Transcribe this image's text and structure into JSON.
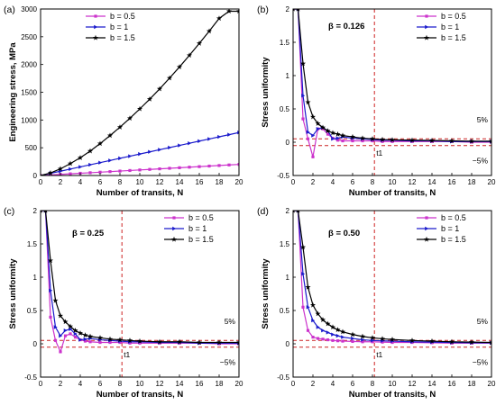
{
  "figure": {
    "legend": [
      "b = 0.5",
      "b = 1",
      "b = 1.5"
    ],
    "series_colors": [
      "#cc33cc",
      "#1a1acc",
      "#000000"
    ],
    "ref_line_color": "#cc2222",
    "percent_pos": "5%",
    "percent_neg": "−5%",
    "t1_label": "t1"
  },
  "chart_data": [
    {
      "panel": "(a)",
      "type": "line",
      "xlabel": "Number of transits, N",
      "ylabel": "Engineering stress, MPa",
      "xlim": [
        0,
        20
      ],
      "ylim": [
        0,
        3000
      ],
      "xticks": [
        0,
        2,
        4,
        6,
        8,
        10,
        12,
        14,
        16,
        18,
        20
      ],
      "yticks": [
        0,
        500,
        1000,
        1500,
        2000,
        2500,
        3000
      ],
      "legend_position": "top-left",
      "x": [
        0,
        1,
        2,
        3,
        4,
        5,
        6,
        7,
        8,
        9,
        10,
        11,
        12,
        13,
        14,
        15,
        16,
        17,
        18,
        19,
        20
      ],
      "series": [
        {
          "name": "b = 0.5",
          "color": "#cc33cc",
          "marker": "square",
          "values": [
            0,
            11,
            20,
            30,
            40,
            50,
            60,
            70,
            80,
            90,
            100,
            110,
            120,
            130,
            140,
            150,
            160,
            170,
            180,
            190,
            200
          ]
        },
        {
          "name": "b = 1",
          "color": "#1a1acc",
          "marker": "triangle",
          "values": [
            0,
            39,
            77,
            116,
            155,
            194,
            232,
            271,
            310,
            348,
            387,
            426,
            465,
            503,
            542,
            581,
            620,
            658,
            697,
            736,
            775
          ]
        },
        {
          "name": "b = 1.5",
          "color": "#000000",
          "marker": "star",
          "values": [
            0,
            45,
            120,
            215,
            320,
            440,
            575,
            720,
            870,
            1030,
            1200,
            1375,
            1560,
            1755,
            1955,
            2165,
            2380,
            2600,
            2830,
            2960,
            2960
          ]
        }
      ]
    },
    {
      "panel": "(b)",
      "type": "line",
      "beta": "β = 0.126",
      "xlabel": "Number of transits, N",
      "ylabel": "Stress uniformity",
      "xlim": [
        0,
        20
      ],
      "ylim": [
        -0.5,
        2.0
      ],
      "xticks": [
        0,
        2,
        4,
        6,
        8,
        10,
        12,
        14,
        16,
        18,
        20
      ],
      "yticks": [
        -0.5,
        0.0,
        0.5,
        1.0,
        1.5,
        2.0
      ],
      "legend_position": "top-right",
      "t1": 8.2,
      "ref_band": [
        0.05,
        -0.05
      ],
      "x": [
        0,
        0.5,
        1.0,
        1.5,
        2.0,
        2.5,
        3.0,
        3.5,
        4.0,
        4.5,
        5.0,
        6.0,
        7.0,
        8.0,
        9.0,
        10.0,
        12.0,
        14.0,
        16.0,
        18.0,
        20.0
      ],
      "series": [
        {
          "name": "b = 0.5",
          "color": "#cc33cc",
          "marker": "square",
          "values": [
            2.0,
            2.0,
            0.35,
            0.05,
            -0.22,
            0.2,
            0.2,
            0.12,
            0.06,
            0.03,
            0.02,
            0.02,
            0.02,
            0.02,
            0.01,
            0.01,
            0.01,
            0.01,
            0.01,
            0.0,
            0.0
          ]
        },
        {
          "name": "b = 1",
          "color": "#1a1acc",
          "marker": "triangle",
          "values": [
            2.0,
            2.0,
            0.7,
            0.15,
            0.1,
            0.2,
            0.22,
            0.17,
            0.05,
            0.06,
            0.08,
            0.06,
            0.05,
            0.04,
            0.03,
            0.03,
            0.02,
            0.02,
            0.01,
            0.01,
            0.01
          ]
        },
        {
          "name": "b = 1.5",
          "color": "#000000",
          "marker": "star",
          "values": [
            2.0,
            2.0,
            1.18,
            0.6,
            0.38,
            0.28,
            0.22,
            0.17,
            0.14,
            0.12,
            0.1,
            0.08,
            0.06,
            0.05,
            0.04,
            0.035,
            0.03,
            0.025,
            0.02,
            0.015,
            0.015
          ]
        }
      ]
    },
    {
      "panel": "(c)",
      "type": "line",
      "beta": "β = 0.25",
      "xlabel": "Number of transits, N",
      "ylabel": "Stress uniformity",
      "xlim": [
        0,
        20
      ],
      "ylim": [
        -0.5,
        2.0
      ],
      "xticks": [
        0,
        2,
        4,
        6,
        8,
        10,
        12,
        14,
        16,
        18,
        20
      ],
      "yticks": [
        -0.5,
        0.0,
        0.5,
        1.0,
        1.5,
        2.0
      ],
      "legend_position": "top-right",
      "t1": 8.2,
      "ref_band": [
        0.05,
        -0.05
      ],
      "x": [
        0,
        0.5,
        1.0,
        1.5,
        2.0,
        2.5,
        3.0,
        3.5,
        4.0,
        4.5,
        5.0,
        6.0,
        7.0,
        8.0,
        9.0,
        10.0,
        12.0,
        14.0,
        16.0,
        18.0,
        20.0
      ],
      "series": [
        {
          "name": "b = 0.5",
          "color": "#cc33cc",
          "marker": "square",
          "values": [
            2.0,
            2.0,
            0.4,
            0.05,
            -0.12,
            0.12,
            0.15,
            0.1,
            0.06,
            0.04,
            0.03,
            0.02,
            0.02,
            0.02,
            0.01,
            0.01,
            0.01,
            0.01,
            0.01,
            0.0,
            0.0
          ]
        },
        {
          "name": "b = 1",
          "color": "#1a1acc",
          "marker": "triangle",
          "values": [
            2.0,
            2.0,
            0.8,
            0.25,
            0.12,
            0.2,
            0.22,
            0.15,
            0.06,
            0.07,
            0.08,
            0.06,
            0.05,
            0.04,
            0.03,
            0.03,
            0.02,
            0.02,
            0.01,
            0.01,
            0.01
          ]
        },
        {
          "name": "b = 1.5",
          "color": "#000000",
          "marker": "star",
          "values": [
            2.0,
            2.0,
            1.25,
            0.65,
            0.42,
            0.33,
            0.26,
            0.2,
            0.16,
            0.13,
            0.11,
            0.09,
            0.07,
            0.06,
            0.05,
            0.04,
            0.03,
            0.03,
            0.02,
            0.02,
            0.02
          ]
        }
      ]
    },
    {
      "panel": "(d)",
      "type": "line",
      "beta": "β = 0.50",
      "xlabel": "Number of transits, N",
      "ylabel": "Stress uniformity",
      "xlim": [
        0,
        20
      ],
      "ylim": [
        -0.5,
        2.0
      ],
      "xticks": [
        0,
        2,
        4,
        6,
        8,
        10,
        12,
        14,
        16,
        18,
        20
      ],
      "yticks": [
        -0.5,
        0.0,
        0.5,
        1.0,
        1.5,
        2.0
      ],
      "legend_position": "top-right",
      "t1": 8.2,
      "ref_band": [
        0.05,
        -0.05
      ],
      "x": [
        0,
        0.5,
        1.0,
        1.5,
        2.0,
        2.5,
        3.0,
        3.5,
        4.0,
        4.5,
        5.0,
        6.0,
        7.0,
        8.0,
        9.0,
        10.0,
        12.0,
        14.0,
        16.0,
        18.0,
        20.0
      ],
      "series": [
        {
          "name": "b = 0.5",
          "color": "#cc33cc",
          "marker": "square",
          "values": [
            2.0,
            2.0,
            0.55,
            0.2,
            0.1,
            0.08,
            0.07,
            0.06,
            0.05,
            0.045,
            0.04,
            0.035,
            0.03,
            0.03,
            0.025,
            0.02,
            0.02,
            0.015,
            0.01,
            0.01,
            0.01
          ]
        },
        {
          "name": "b = 1",
          "color": "#1a1acc",
          "marker": "triangle",
          "values": [
            2.0,
            2.0,
            1.05,
            0.55,
            0.35,
            0.25,
            0.2,
            0.17,
            0.14,
            0.12,
            0.1,
            0.08,
            0.06,
            0.05,
            0.045,
            0.04,
            0.03,
            0.025,
            0.02,
            0.015,
            0.015
          ]
        },
        {
          "name": "b = 1.5",
          "color": "#000000",
          "marker": "star",
          "values": [
            2.0,
            2.0,
            1.45,
            0.85,
            0.58,
            0.45,
            0.36,
            0.3,
            0.25,
            0.21,
            0.18,
            0.14,
            0.11,
            0.09,
            0.075,
            0.065,
            0.05,
            0.04,
            0.03,
            0.025,
            0.02
          ]
        }
      ]
    }
  ]
}
